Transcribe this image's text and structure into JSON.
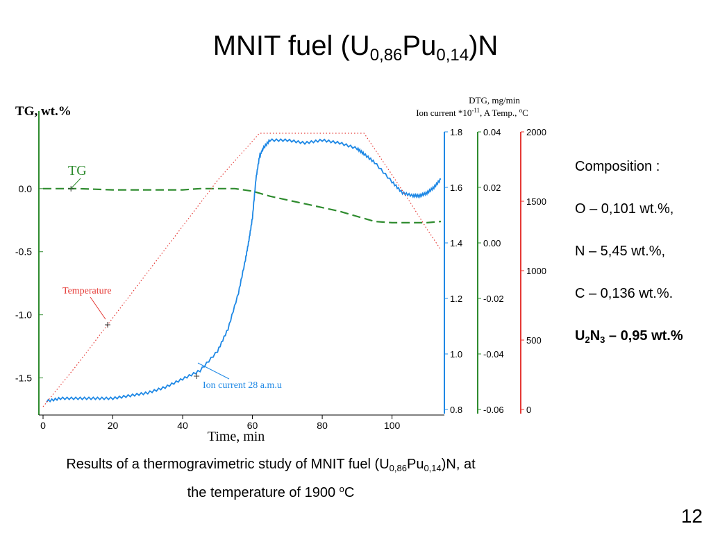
{
  "slide": {
    "title_main": "MNIT fuel (U",
    "title_sub1": "0,86",
    "title_mid": "Pu",
    "title_sub2": "0,14",
    "title_end": ")N",
    "page_number": "12"
  },
  "composition": {
    "heading": "Composition :",
    "o": "O – 0,101 wt.%,",
    "n": "N – 5,45 wt.%,",
    "c": "C – 0,136 wt.%.",
    "u2n3_a": "U",
    "u2n3_sub1": "2",
    "u2n3_b": "N",
    "u2n3_sub2": "3",
    "u2n3_c": " – 0,95 wt.%"
  },
  "caption": {
    "part1": "Results of a thermogravimetric study of MNIT fuel (U",
    "sub1": "0,86",
    "part2": "Pu",
    "sub2": "0,14",
    "part3": ")N, at",
    "line2": "the temperature  of 1900 ",
    "sup": "o",
    "line2_end": "C"
  },
  "colors": {
    "tg": "#2e8b2e",
    "ion": "#1e88e5",
    "temp": "#e53935",
    "dtg": "#2e8b2e"
  },
  "chart_data": {
    "type": "line",
    "xlabel": "Time, min",
    "x_ticks": [
      "0",
      "20",
      "40",
      "60",
      "80",
      "100"
    ],
    "xlim": [
      0,
      115
    ],
    "left_axis": {
      "label": "TG, wt.%",
      "ticks": [
        "0.0",
        "-0.5",
        "-1.0",
        "-1.5"
      ],
      "ylim": [
        -1.75,
        0.45
      ]
    },
    "ion_axis": {
      "ticks": [
        "1.8",
        "1.6",
        "1.4",
        "1.2",
        "1.0",
        "0.8"
      ],
      "ylim": [
        0.8,
        1.8
      ]
    },
    "dtg_axis": {
      "ticks": [
        "0.04",
        "0.02",
        "0.00",
        "-0.02",
        "-0.04",
        "-0.06"
      ],
      "ylim": [
        -0.06,
        0.04
      ]
    },
    "temp_axis": {
      "ticks": [
        "2000",
        "1500",
        "1000",
        "500",
        "0"
      ],
      "ylim": [
        0,
        2000
      ]
    },
    "right_header_line1": "DTG, mg/min",
    "right_header_line2": "Ion current *10",
    "right_header_exp": "-11",
    "right_header_line2b": ", A  Temp., ",
    "right_header_deg": "o",
    "right_header_c": "C",
    "series": [
      {
        "name": "TG",
        "axis": "left",
        "x": [
          0,
          10,
          20,
          30,
          40,
          45,
          50,
          55,
          60,
          65,
          70,
          75,
          80,
          85,
          90,
          95,
          100,
          105,
          110,
          114
        ],
        "y": [
          0.0,
          0.0,
          -0.01,
          -0.01,
          -0.01,
          0.0,
          0.0,
          0.0,
          -0.02,
          -0.06,
          -0.09,
          -0.12,
          -0.15,
          -0.18,
          -0.22,
          -0.26,
          -0.27,
          -0.27,
          -0.27,
          -0.26
        ]
      },
      {
        "name": "Ion current 28 a.m.u",
        "axis": "ion",
        "x": [
          1,
          5,
          10,
          15,
          20,
          25,
          30,
          35,
          40,
          45,
          50,
          53,
          56,
          58,
          59,
          60,
          61,
          62,
          63,
          65,
          70,
          75,
          80,
          85,
          90,
          92,
          95,
          100,
          103,
          106,
          108,
          110,
          112,
          114
        ],
        "y": [
          0.83,
          0.84,
          0.84,
          0.84,
          0.84,
          0.85,
          0.86,
          0.88,
          0.91,
          0.94,
          1.01,
          1.09,
          1.22,
          1.34,
          1.41,
          1.49,
          1.63,
          1.71,
          1.74,
          1.77,
          1.77,
          1.76,
          1.77,
          1.76,
          1.74,
          1.72,
          1.69,
          1.62,
          1.58,
          1.57,
          1.57,
          1.58,
          1.6,
          1.63
        ]
      },
      {
        "name": "Temperature",
        "axis": "temp",
        "x": [
          0,
          10,
          20,
          30,
          40,
          50,
          62,
          70,
          80,
          92,
          100,
          105,
          110,
          114
        ],
        "y": [
          20,
          330,
          660,
          990,
          1320,
          1650,
          1990,
          1990,
          1990,
          1990,
          1690,
          1500,
          1300,
          1150
        ]
      }
    ],
    "annotations": [
      "TG",
      "Temperature",
      "Ion current 28 a.m.u"
    ]
  }
}
